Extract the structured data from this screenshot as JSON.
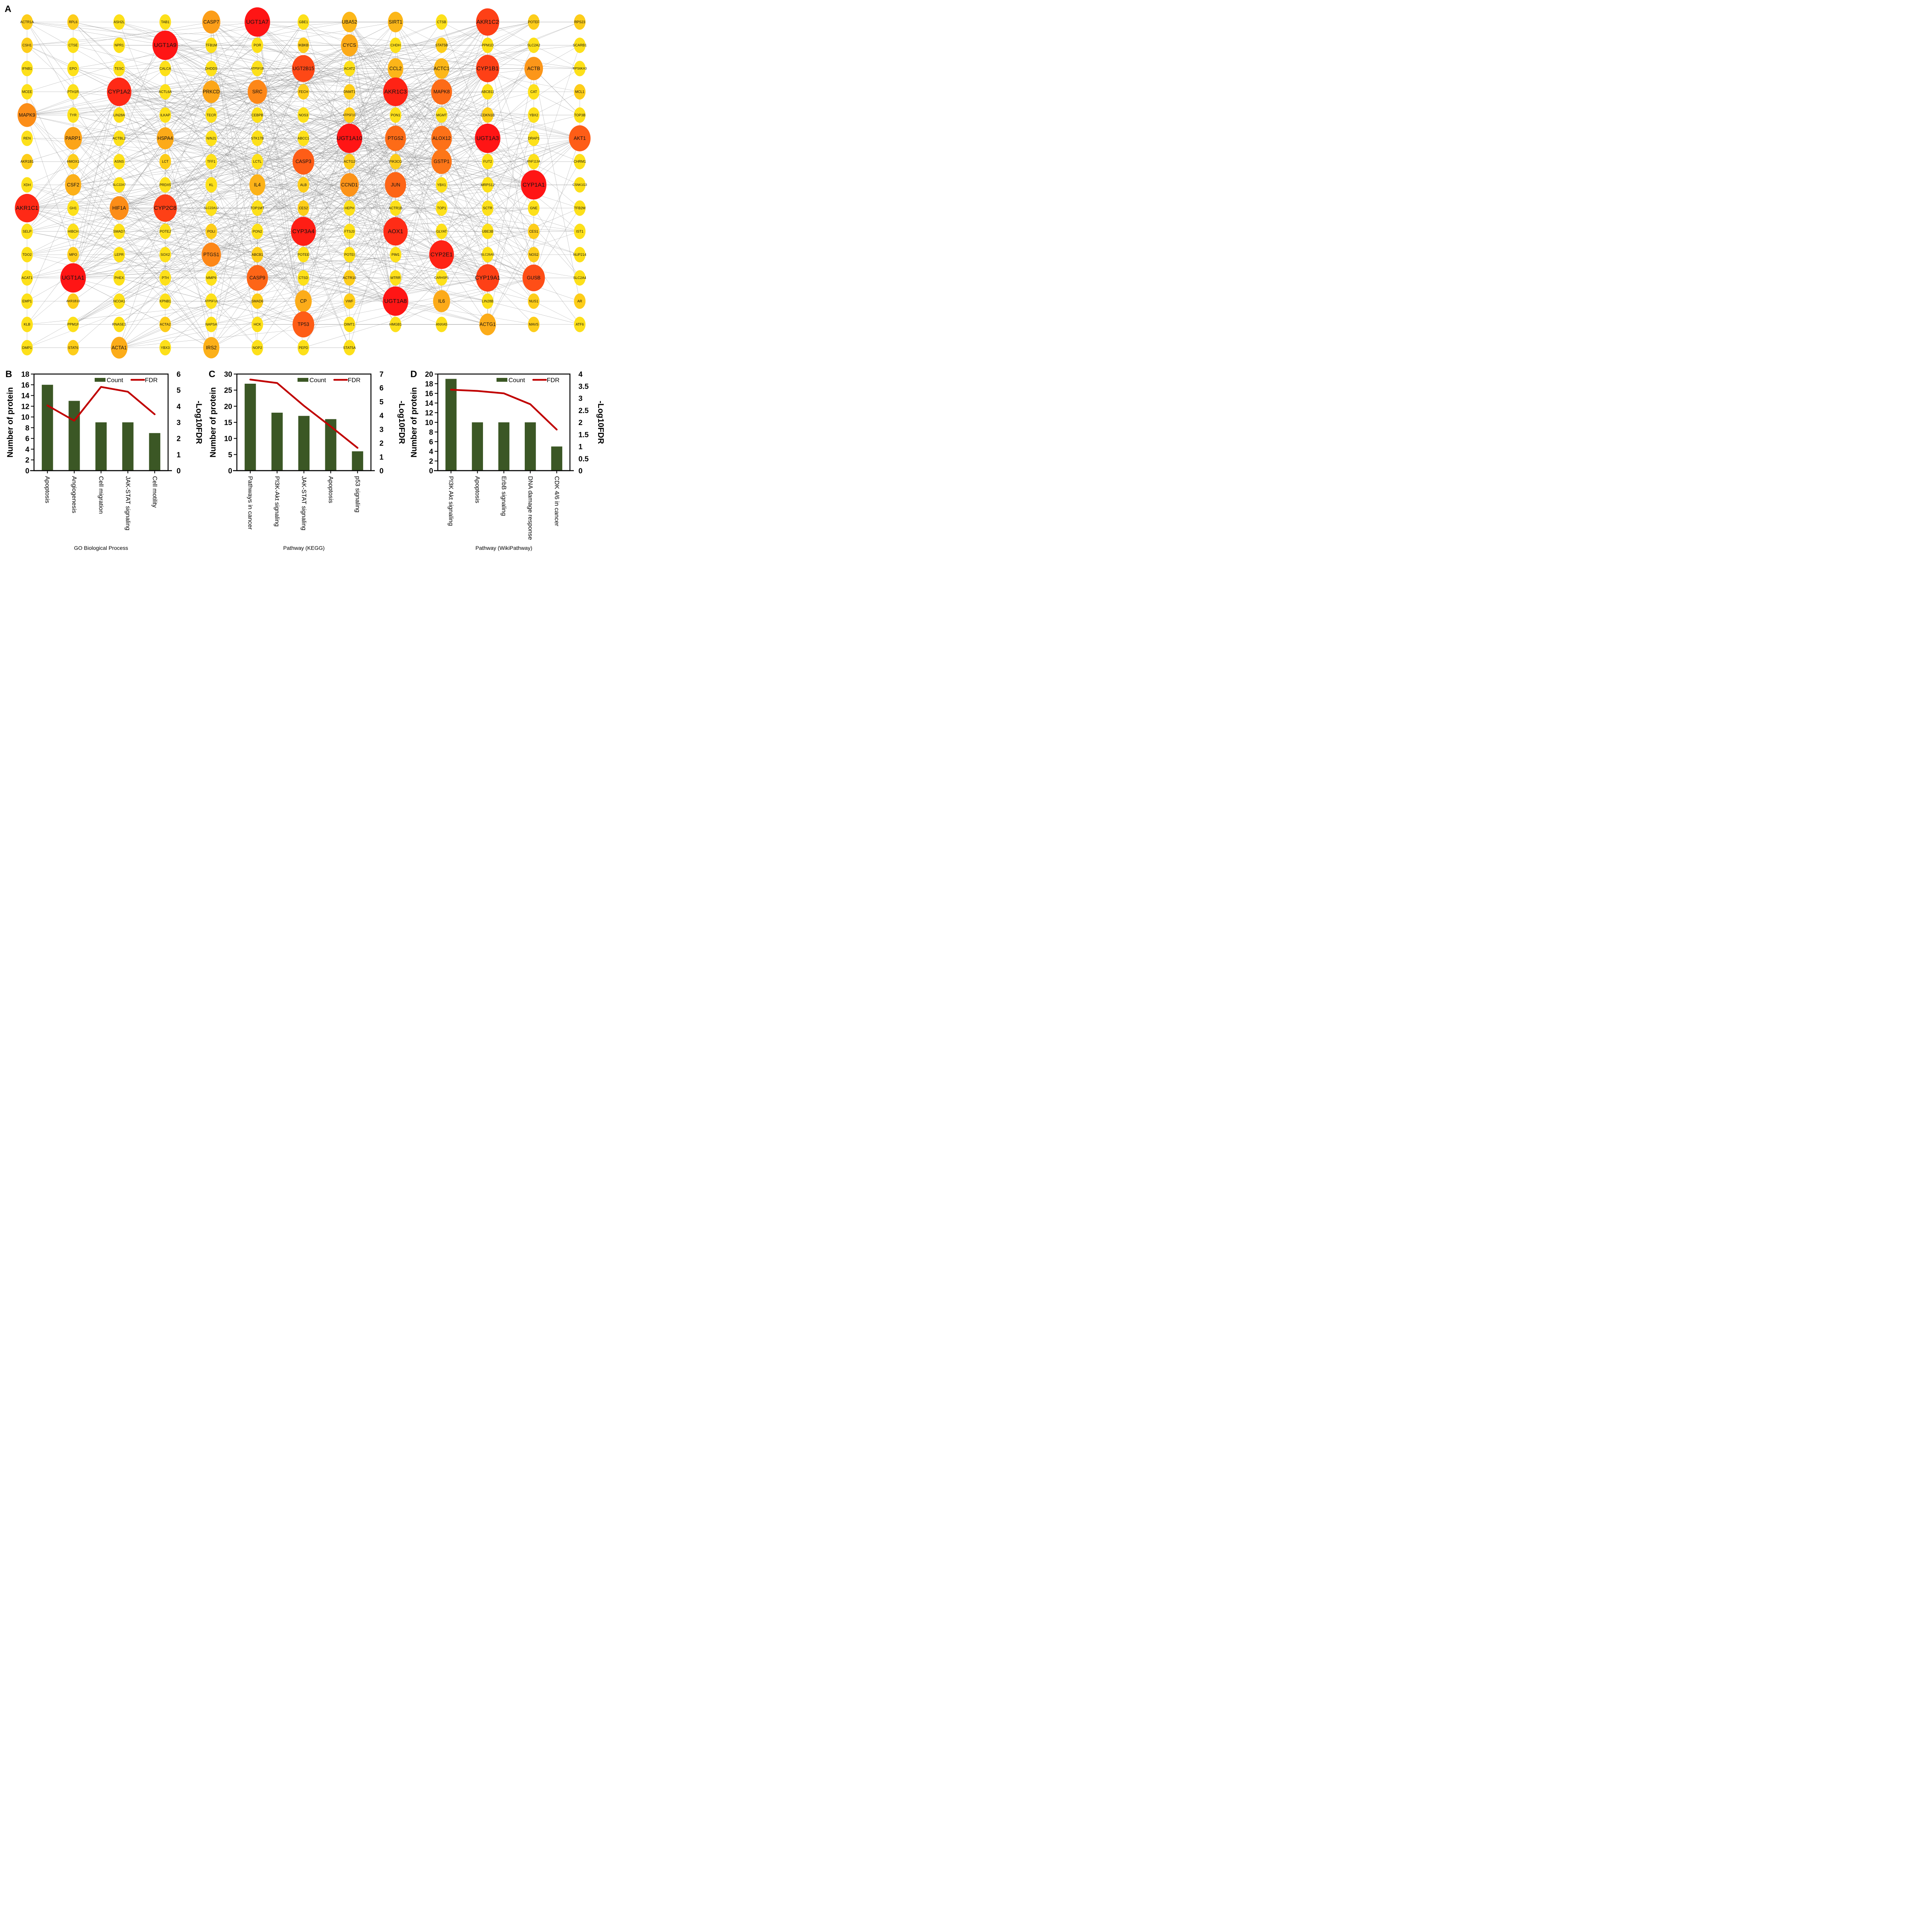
{
  "panels": {
    "a": "A",
    "b": "B",
    "c": "C",
    "d": "D"
  },
  "network": {
    "rows": [
      [
        "ACTR1A",
        "RPL6",
        "ASH2L",
        "TAB1",
        "CASP7",
        "UGT1A7",
        "GBE1",
        "UBA52",
        "SIRT1",
        "CTSB",
        "AKR1C2",
        "POTEF",
        "RPS23"
      ],
      [
        "CSH1",
        "CTSE",
        "NPR1",
        "UGT1A9",
        "TFB1M",
        "POR",
        "IKBKB",
        "CYCS",
        "CHDH",
        "STAT5B",
        "PPM1D",
        "SLC2A2",
        "SCARB1"
      ],
      [
        "IFNB1",
        "EPO",
        "TESC",
        "CALCA",
        "DHDDS",
        "ATP5F1B",
        "UGT2B15",
        "ACAT2",
        "CCL2",
        "ACTC1",
        "CYP1B1",
        "ACTB",
        "RPS6KA3"
      ],
      [
        "MCEE",
        "PTH1R",
        "CYP1A2",
        "ACTL6A",
        "PRKCD",
        "SRC",
        "FECH",
        "DNMT1",
        "AKR1C3",
        "MAPK8",
        "ABCB11",
        "CAT",
        "MCL1"
      ],
      [
        "MAPK9",
        "TYR",
        "LIN28A",
        "ILKAP",
        "TECR",
        "CEBPB",
        "NOS3",
        "ATP5F1C",
        "PON1",
        "MGMT",
        "CDKN1B",
        "YBX2",
        "TOP3B"
      ],
      [
        "REN",
        "PARP1",
        "ACTBL2",
        "HSPA4",
        "NINJ1",
        "STK17B",
        "ABCC1",
        "UGT1A10",
        "PTGS2",
        "ALOX12",
        "UGT1A3",
        "DRAP1",
        "AKT1"
      ],
      [
        "AKR1B1",
        "HMOX1",
        "ASNS",
        "LCT",
        "TFF1",
        "LCTL",
        "CASP3",
        "ACTG2",
        "PIK3CG",
        "GSTP1",
        "FUT2",
        "RNF113A",
        "CHRM1"
      ],
      [
        "XDH",
        "CSF2",
        "SLC22A7",
        "PRDX5",
        "KL",
        "IL4",
        "ALB",
        "CCND1",
        "JUN",
        "YBX1",
        "MRPS12",
        "CYP1A1",
        "CSNK1G3"
      ],
      [
        "AKR1C1",
        "GH1",
        "HIF1A",
        "CYP2C8",
        "SLC22A12",
        "TOP1MT",
        "CES2",
        "HEPH",
        "ACTR1B",
        "TOP1",
        "SCTR",
        "GNE",
        "TFB2M"
      ],
      [
        "SELP",
        "HIBCH",
        "SMAD7",
        "POTEJ",
        "POLI",
        "PON2",
        "CYP3A4",
        "FTSJ3",
        "AOX1",
        "GLYAT",
        "UBE3B",
        "CES1",
        "IST1"
      ],
      [
        "TDO2",
        "MPO",
        "LEPR",
        "SOX2",
        "PTGS1",
        "ABCB1",
        "POTEE",
        "POTEI",
        "PIM1",
        "CYP2E1",
        "SLC26A5",
        "NOS2",
        "NUP214"
      ],
      [
        "ACAT1",
        "UGT1A1",
        "PHEX",
        "PTH",
        "MMP9",
        "CASP9",
        "CTSD",
        "ACTR10",
        "MTRR",
        "CARHSP1",
        "CYP19A1",
        "GUSB",
        "SLC2A4"
      ],
      [
        "EMP1",
        "AKR1B10",
        "NCOA1",
        "KPNB1",
        "ATP5F1A",
        "SMAD6",
        "CP",
        "VWF",
        "UGT1A8",
        "IL6",
        "LIN28B",
        "NUS1",
        "AR"
      ],
      [
        "KLB",
        "PPM1F",
        "RNASE1",
        "ACTA2",
        "NAPSA",
        "HCK",
        "TP53",
        "DIMT1",
        "HMGB1",
        "ANXA5",
        "ACTG1",
        "MAVS",
        "ATF6"
      ],
      [
        "DMP1",
        "STAT6",
        "ACTA1",
        "YBX3",
        "IRS2",
        "NOP2",
        "PEPD",
        "STAT5A"
      ]
    ],
    "hub_scores": {
      "UGT1A7": 1.0,
      "UGT1A9": 1.0,
      "UGT1A10": 1.0,
      "UGT1A3": 1.0,
      "UGT1A1": 1.0,
      "UGT1A8": 1.0,
      "CYP1A1": 1.0,
      "CYP3A4": 0.97,
      "AKR1C3": 0.95,
      "CYP2E1": 0.95,
      "AKR1C1": 0.93,
      "CYP1A2": 0.93,
      "AOX1": 0.92,
      "CYP1B1": 0.85,
      "AKR1C2": 0.85,
      "CYP2C8": 0.85,
      "CYP19A1": 0.85,
      "UGT2B15": 0.82,
      "GUSB": 0.8,
      "AKT1": 0.75,
      "TP53": 0.75,
      "CASP3": 0.75,
      "CASP9": 0.72,
      "JUN": 0.72,
      "PTGS2": 0.7,
      "MAPK8": 0.7,
      "ALOX12": 0.68,
      "GSTP1": 0.66,
      "PTGS1": 0.6,
      "SRC": 0.6,
      "MAPK9": 0.58,
      "HIF1A": 0.58,
      "CCND1": 0.56,
      "ACTB": 0.55,
      "CASP7": 0.52,
      "PARP1": 0.5,
      "PRKCD": 0.48,
      "HSPA4": 0.45,
      "CYCS": 0.45,
      "IL6": 0.45,
      "CP": 0.43,
      "ACTG1": 0.43,
      "ACTA1": 0.43,
      "IRS2": 0.4,
      "CSF2": 0.4,
      "IL4": 0.38,
      "CCL2": 0.36,
      "ACTC1": 0.34,
      "SIRT1": 0.34,
      "UBA52": 0.34
    },
    "mid_nodes": [
      "IKBKB",
      "STAT5B",
      "CDKN1B",
      "AKR1B1",
      "HMOX1",
      "LCT",
      "CES2",
      "ACTG2",
      "PIK3CG",
      "NOS2",
      "CES1",
      "AR",
      "ACTA2",
      "RPL6",
      "AKR1B10",
      "POLI",
      "FECH",
      "DNMT1",
      "ATP5F1C",
      "MPO",
      "VWF",
      "SMAD6",
      "STAT6",
      "ACTR10",
      "NUS1",
      "MAVS",
      "ABCB1",
      "ALB",
      "CSH1",
      "ACTR1A",
      "RPS23",
      "MCL1",
      "POTEF"
    ],
    "colors": {
      "low": "#FDE01A",
      "mid": "#FCA419",
      "high": "#FF1515",
      "edge": "#8a8a8a"
    }
  },
  "chart_data": [
    {
      "type": "bar",
      "panel": "B",
      "title": "",
      "xlabel": "GO Biological Process",
      "ylabel": "Number of protein",
      "y2label": "-Log10FDR",
      "categories": [
        "Apoptosis",
        "Angiogenesis",
        "Cell migration",
        "JAK-STAT signaling",
        "Cell motility"
      ],
      "series": [
        {
          "name": "Count",
          "kind": "bar",
          "axis": "left",
          "color": "#3B5725",
          "values": [
            16,
            13,
            9,
            9,
            7
          ]
        },
        {
          "name": "FDR",
          "kind": "line",
          "axis": "right",
          "color": "#C00000",
          "values": [
            4.05,
            3.1,
            5.2,
            4.9,
            3.5
          ]
        }
      ],
      "ylim": [
        0,
        18
      ],
      "yticks": [
        0,
        2,
        4,
        6,
        8,
        10,
        12,
        14,
        16,
        18
      ],
      "y2lim": [
        0,
        6
      ],
      "y2ticks": [
        0,
        1,
        2,
        3,
        4,
        5,
        6
      ],
      "legend": "top-right",
      "grid": false
    },
    {
      "type": "bar",
      "panel": "C",
      "title": "",
      "xlabel": "Pathway (KEGG)",
      "ylabel": "Number of protein",
      "y2label": "-Log10FDR",
      "categories": [
        "Pathways in cancer",
        "PI3K-Akt signaling",
        "JAK-STAT signaling",
        "Apoptosis",
        "p53 signaling"
      ],
      "series": [
        {
          "name": "Count",
          "kind": "bar",
          "axis": "left",
          "color": "#3B5725",
          "values": [
            27,
            18,
            17,
            16,
            6
          ]
        },
        {
          "name": "FDR",
          "kind": "line",
          "axis": "right",
          "color": "#C00000",
          "values": [
            6.6,
            6.35,
            4.7,
            3.2,
            1.65
          ]
        }
      ],
      "ylim": [
        0,
        30
      ],
      "yticks": [
        0,
        5,
        10,
        15,
        20,
        25,
        30
      ],
      "y2lim": [
        0,
        7
      ],
      "y2ticks": [
        0,
        1,
        2,
        3,
        4,
        5,
        6,
        7
      ],
      "legend": "top-right",
      "grid": false
    },
    {
      "type": "bar",
      "panel": "D",
      "title": "",
      "xlabel": "Pathway (WikiPathway)",
      "ylabel": "Number of protein",
      "y2label": "-Log10FDR",
      "categories": [
        "PI3K Akt signaling",
        "Apoptosis",
        "ErbB signaling",
        "DNA damage response",
        "CDK 4/6 in cancer"
      ],
      "series": [
        {
          "name": "Count",
          "kind": "bar",
          "axis": "left",
          "color": "#3B5725",
          "values": [
            19,
            10,
            10,
            10,
            5
          ]
        },
        {
          "name": "FDR",
          "kind": "line",
          "axis": "right",
          "color": "#C00000",
          "values": [
            3.35,
            3.3,
            3.2,
            2.75,
            1.7
          ]
        }
      ],
      "ylim": [
        0,
        20
      ],
      "yticks": [
        0,
        2,
        4,
        6,
        8,
        10,
        12,
        14,
        16,
        18,
        20
      ],
      "y2lim": [
        0,
        4
      ],
      "y2ticks": [
        0,
        0.5,
        1,
        1.5,
        2,
        2.5,
        3,
        3.5,
        4
      ],
      "legend": "top-right",
      "grid": false
    }
  ]
}
